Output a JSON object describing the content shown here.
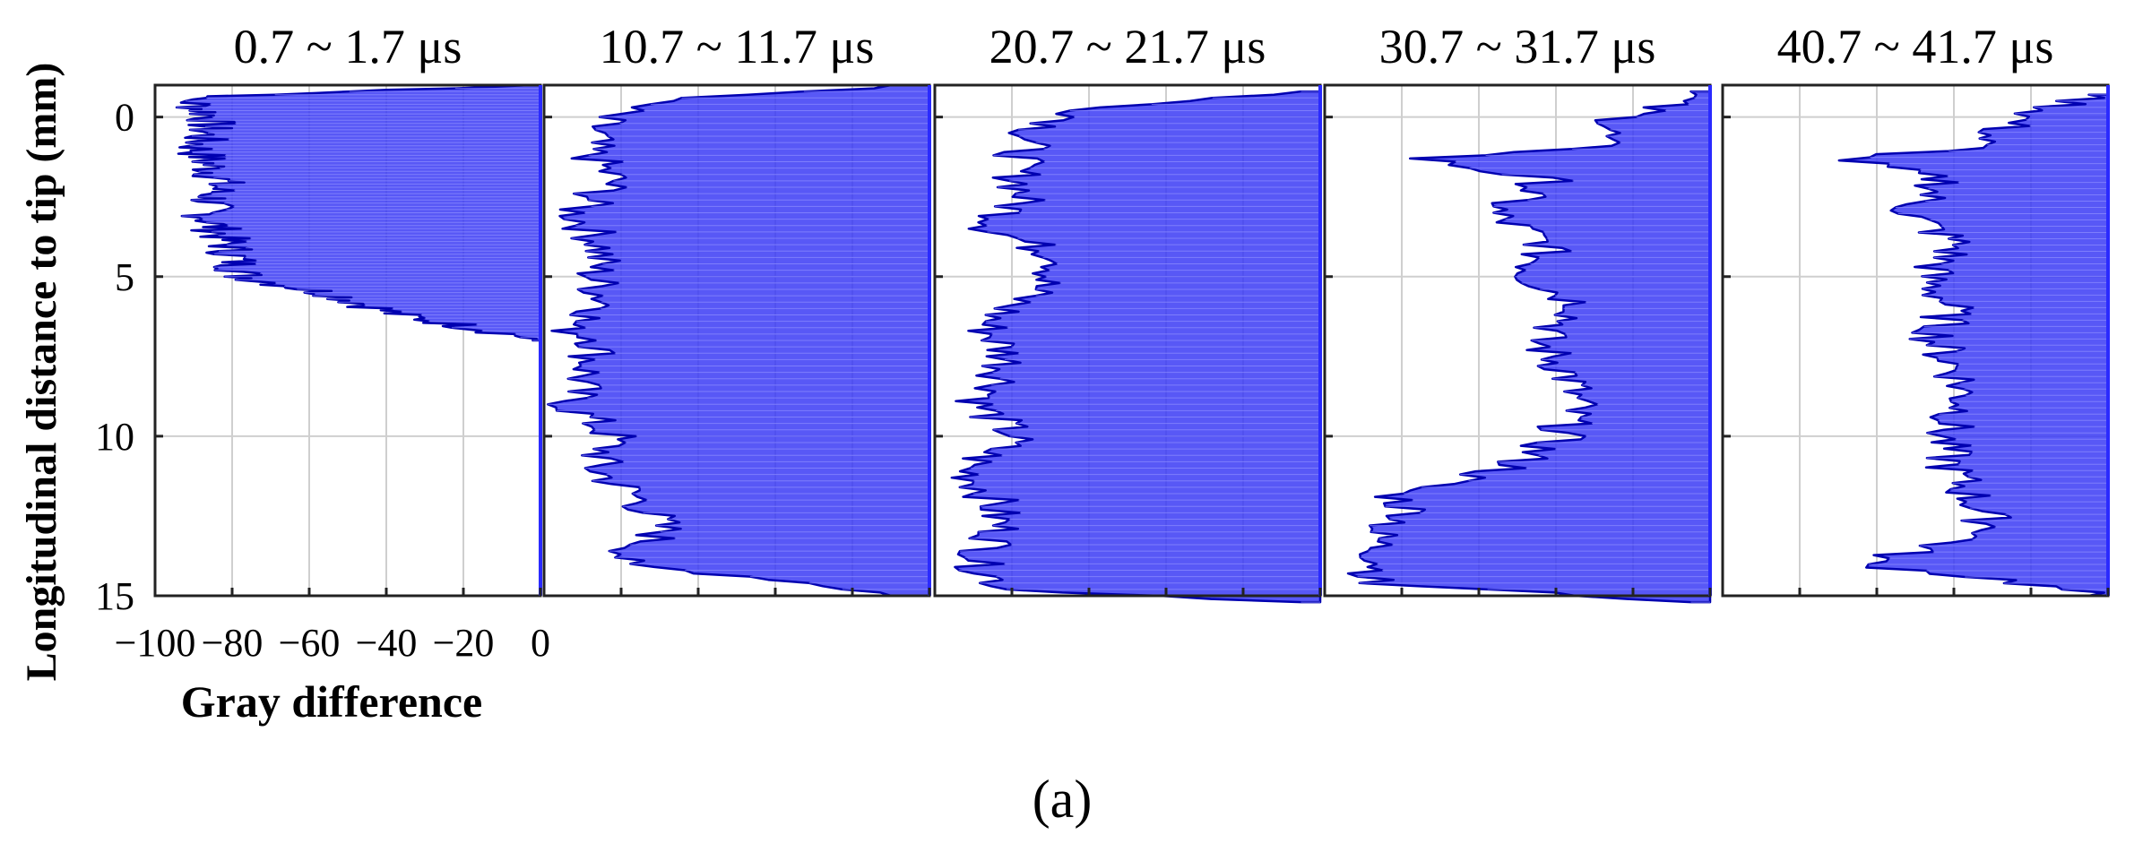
{
  "chart_data": {
    "type": "area",
    "orientation": "horizontal-profile",
    "figure_caption": "(a)",
    "ylabel": "Longitudinal distance to tip (mm)",
    "xlabel": "Gray difference",
    "ylim": [
      -1,
      15
    ],
    "xlim": [
      -100,
      0
    ],
    "y_ticks": [
      0,
      5,
      10,
      15
    ],
    "x_ticks": [
      -100,
      -80,
      -60,
      -40,
      -20,
      0
    ],
    "x_tick_labels": [
      "−100",
      "−80",
      "−60",
      "−40",
      "−20",
      "0"
    ],
    "y_inverted": true,
    "grid": true,
    "fill_color": "#3b3bf5",
    "edge_color": "#0000b0",
    "panels": [
      {
        "title": "0.7 ~ 1.7 μs",
        "series": [
          {
            "y": -1.0,
            "x": -3
          },
          {
            "y": -0.6,
            "x": -95
          },
          {
            "y": 0.0,
            "x": -88
          },
          {
            "y": 1.0,
            "x": -92
          },
          {
            "y": 2.0,
            "x": -86
          },
          {
            "y": 3.0,
            "x": -90
          },
          {
            "y": 4.0,
            "x": -84
          },
          {
            "y": 5.0,
            "x": -80
          },
          {
            "y": 5.6,
            "x": -55
          },
          {
            "y": 6.2,
            "x": -40
          },
          {
            "y": 6.6,
            "x": -20
          },
          {
            "y": 7.0,
            "x": -2
          }
        ]
      },
      {
        "title": "10.7 ~ 11.7 μs",
        "series": [
          {
            "y": -1.0,
            "x": -10
          },
          {
            "y": -0.5,
            "x": -75
          },
          {
            "y": 0.0,
            "x": -88
          },
          {
            "y": 1.0,
            "x": -92
          },
          {
            "y": 2.0,
            "x": -85
          },
          {
            "y": 3.0,
            "x": -95
          },
          {
            "y": 4.0,
            "x": -88
          },
          {
            "y": 5.0,
            "x": -90
          },
          {
            "y": 6.0,
            "x": -86
          },
          {
            "y": 6.6,
            "x": -98
          },
          {
            "y": 7.0,
            "x": -88
          },
          {
            "y": 8.0,
            "x": -92
          },
          {
            "y": 9.0,
            "x": -97
          },
          {
            "y": 10.0,
            "x": -85
          },
          {
            "y": 11.0,
            "x": -90
          },
          {
            "y": 12.0,
            "x": -78
          },
          {
            "y": 13.0,
            "x": -72
          },
          {
            "y": 14.0,
            "x": -85
          },
          {
            "y": 14.5,
            "x": -40
          },
          {
            "y": 15.0,
            "x": -10
          }
        ]
      },
      {
        "title": "20.7 ~ 21.7 μs",
        "series": [
          {
            "y": -0.8,
            "x": -5
          },
          {
            "y": -0.3,
            "x": -60
          },
          {
            "y": 0.5,
            "x": -78
          },
          {
            "y": 1.5,
            "x": -82
          },
          {
            "y": 2.5,
            "x": -80
          },
          {
            "y": 3.5,
            "x": -88
          },
          {
            "y": 4.5,
            "x": -68
          },
          {
            "y": 5.5,
            "x": -78
          },
          {
            "y": 6.5,
            "x": -90
          },
          {
            "y": 7.5,
            "x": -84
          },
          {
            "y": 8.5,
            "x": -86
          },
          {
            "y": 9.0,
            "x": -92
          },
          {
            "y": 10.0,
            "x": -82
          },
          {
            "y": 11.0,
            "x": -95
          },
          {
            "y": 12.0,
            "x": -88
          },
          {
            "y": 13.0,
            "x": -86
          },
          {
            "y": 14.0,
            "x": -92
          },
          {
            "y": 14.8,
            "x": -84
          },
          {
            "y": 15.2,
            "x": -5
          }
        ]
      },
      {
        "title": "30.7 ~ 31.7 μs",
        "series": [
          {
            "y": -0.8,
            "x": -5
          },
          {
            "y": 0.0,
            "x": -25
          },
          {
            "y": 1.0,
            "x": -35
          },
          {
            "y": 1.3,
            "x": -78
          },
          {
            "y": 2.0,
            "x": -45
          },
          {
            "y": 3.0,
            "x": -60
          },
          {
            "y": 4.0,
            "x": -45
          },
          {
            "y": 5.0,
            "x": -50
          },
          {
            "y": 6.0,
            "x": -35
          },
          {
            "y": 7.0,
            "x": -48
          },
          {
            "y": 8.0,
            "x": -40
          },
          {
            "y": 9.0,
            "x": -38
          },
          {
            "y": 10.0,
            "x": -42
          },
          {
            "y": 11.0,
            "x": -55
          },
          {
            "y": 11.8,
            "x": -85
          },
          {
            "y": 12.5,
            "x": -80
          },
          {
            "y": 13.0,
            "x": -90
          },
          {
            "y": 14.0,
            "x": -88
          },
          {
            "y": 14.6,
            "x": -92
          },
          {
            "y": 15.2,
            "x": -5
          }
        ]
      },
      {
        "title": "40.7 ~ 41.7 μs",
        "series": [
          {
            "y": -0.7,
            "x": -5
          },
          {
            "y": 0.0,
            "x": -25
          },
          {
            "y": 1.0,
            "x": -40
          },
          {
            "y": 1.3,
            "x": -72
          },
          {
            "y": 2.0,
            "x": -45
          },
          {
            "y": 3.0,
            "x": -55
          },
          {
            "y": 4.0,
            "x": -42
          },
          {
            "y": 5.0,
            "x": -50
          },
          {
            "y": 6.0,
            "x": -44
          },
          {
            "y": 7.0,
            "x": -48
          },
          {
            "y": 8.0,
            "x": -42
          },
          {
            "y": 9.0,
            "x": -40
          },
          {
            "y": 10.0,
            "x": -46
          },
          {
            "y": 11.0,
            "x": -44
          },
          {
            "y": 12.0,
            "x": -38
          },
          {
            "y": 13.0,
            "x": -32
          },
          {
            "y": 14.0,
            "x": -68
          },
          {
            "y": 14.5,
            "x": -30
          },
          {
            "y": 15.0,
            "x": -5
          }
        ]
      }
    ]
  }
}
